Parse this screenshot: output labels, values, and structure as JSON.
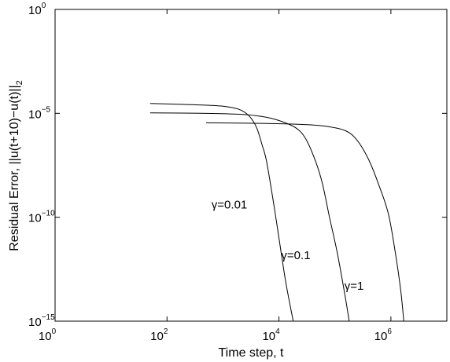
{
  "chart_data": {
    "type": "line",
    "title": "",
    "xlabel": "Time step, t",
    "ylabel": "Residual Error, ||u(t+10)−u(t)||",
    "ylabel_subscript": "2",
    "xscale": "log",
    "yscale": "log",
    "xlim": [
      1,
      10000000
    ],
    "ylim": [
      1e-15,
      1
    ],
    "grid": false,
    "legend": "none",
    "x_ticks": [
      {
        "value": 1,
        "base": "10",
        "exp": "0"
      },
      {
        "value": 100,
        "base": "10",
        "exp": "2"
      },
      {
        "value": 10000,
        "base": "10",
        "exp": "4"
      },
      {
        "value": 1000000,
        "base": "10",
        "exp": "6"
      }
    ],
    "y_ticks": [
      {
        "value": 1,
        "base": "10",
        "exp": "0"
      },
      {
        "value": 1e-05,
        "base": "10",
        "exp": "−5"
      },
      {
        "value": 1e-10,
        "base": "10",
        "exp": "−10"
      },
      {
        "value": 1e-15,
        "base": "10",
        "exp": "−15"
      }
    ],
    "series": [
      {
        "name": "γ=0.01",
        "label_at": [
          1300,
          4e-10
        ],
        "points": [
          [
            50,
            3e-05
          ],
          [
            300,
            2.6e-05
          ],
          [
            1000,
            2.2e-05
          ],
          [
            2000,
            1.5e-05
          ],
          [
            3000,
            7e-06
          ],
          [
            4000,
            2e-06
          ],
          [
            5000,
            3e-07
          ],
          [
            6000,
            5e-08
          ],
          [
            8000,
            5e-10
          ],
          [
            10000,
            1e-11
          ],
          [
            13000,
            1e-13
          ],
          [
            16000,
            5e-15
          ],
          [
            18000,
            1e-15
          ]
        ]
      },
      {
        "name": "γ=0.1",
        "label_at": [
          20000,
          1.5e-12
        ],
        "points": [
          [
            50,
            1.05e-05
          ],
          [
            500,
            1e-05
          ],
          [
            2000,
            9e-06
          ],
          [
            5000,
            7e-06
          ],
          [
            10000,
            4.5e-06
          ],
          [
            20000,
            2e-06
          ],
          [
            30000,
            6e-07
          ],
          [
            45000,
            5e-08
          ],
          [
            60000,
            4e-09
          ],
          [
            80000,
            1e-10
          ],
          [
            110000,
            2e-12
          ],
          [
            150000,
            2e-14
          ],
          [
            180000,
            1e-15
          ]
        ]
      },
      {
        "name": "γ=1",
        "label_at": [
          220000,
          5e-14
        ],
        "points": [
          [
            500,
            3.5e-06
          ],
          [
            5000,
            3.3e-06
          ],
          [
            20000,
            3e-06
          ],
          [
            60000,
            2.5e-06
          ],
          [
            150000,
            1.5e-06
          ],
          [
            250000,
            5e-07
          ],
          [
            400000,
            6e-08
          ],
          [
            600000,
            4e-09
          ],
          [
            900000,
            1.5e-10
          ],
          [
            1200000,
            2e-12
          ],
          [
            1500000,
            3e-14
          ],
          [
            1700000,
            1e-15
          ]
        ]
      }
    ]
  }
}
